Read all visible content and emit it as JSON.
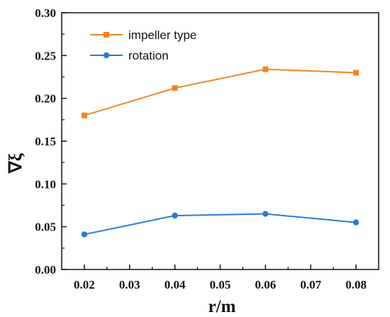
{
  "chart_data": {
    "type": "line",
    "xlabel": "r/m",
    "ylabel": "∇ξ",
    "xlim": [
      0.015,
      0.085
    ],
    "ylim": [
      0.0,
      0.3
    ],
    "x_ticks": [
      "0.02",
      "0.03",
      "0.04",
      "0.05",
      "0.06",
      "0.07",
      "0.08"
    ],
    "y_ticks": [
      "0.00",
      "0.05",
      "0.10",
      "0.15",
      "0.20",
      "0.25",
      "0.30"
    ],
    "x": [
      0.02,
      0.04,
      0.06,
      0.08
    ],
    "series": [
      {
        "name": "impeller type",
        "values": [
          0.18,
          0.212,
          0.234,
          0.23
        ],
        "color": "#f28522",
        "marker": "square"
      },
      {
        "name": "rotation",
        "values": [
          0.041,
          0.063,
          0.065,
          0.055
        ],
        "color": "#2a7ad5",
        "marker": "circle"
      }
    ],
    "legend_position": "top-left",
    "grid": false
  }
}
